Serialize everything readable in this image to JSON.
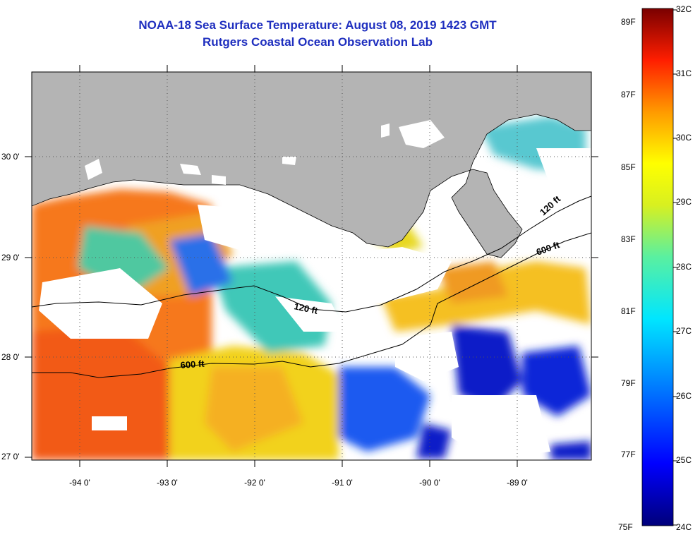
{
  "title": {
    "line1": "NOAA-18 Sea Surface Temperature:  August 08, 2019 1423 GMT",
    "line2": "Rutgers Coastal Ocean Observation Lab"
  },
  "map": {
    "lat_ticks": [
      "30 0'",
      "29 0'",
      "28 0'",
      "27 0'"
    ],
    "lon_ticks": [
      "-94 0'",
      "-93 0'",
      "-92 0'",
      "-91 0'",
      "-90 0'",
      "-89 0'"
    ],
    "contour_labels": [
      "120 ft",
      "600 ft",
      "120 ft",
      "600 ft"
    ],
    "colors": {
      "land": "#b4b4b4",
      "clouds": "#ffffff",
      "title": "#1f2fbf"
    }
  },
  "colorbar": {
    "celsius_labels": [
      "32C",
      "31C",
      "30C",
      "29C",
      "28C",
      "27C",
      "26C",
      "25C",
      "24C"
    ],
    "fahrenheit_labels": [
      "89F",
      "87F",
      "85F",
      "83F",
      "81F",
      "79F",
      "77F",
      "75F"
    ],
    "range_c": [
      24,
      32
    ]
  }
}
